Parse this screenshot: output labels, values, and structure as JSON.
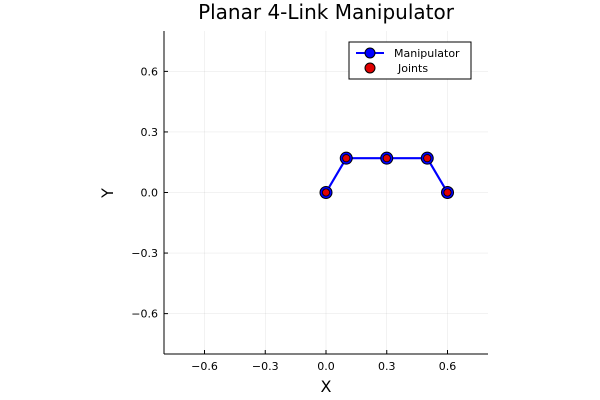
{
  "chart_data": {
    "type": "line",
    "title": "Planar 4-Link Manipulator",
    "xlabel": "X",
    "ylabel": "Y",
    "xlim": [
      -0.8,
      0.8
    ],
    "ylim": [
      -0.8,
      0.8
    ],
    "xticks": [
      -0.6,
      -0.3,
      0.0,
      0.3,
      0.6
    ],
    "yticks": [
      -0.6,
      -0.3,
      0.0,
      0.3,
      0.6
    ],
    "xtick_labels": [
      "−0.6",
      "−0.3",
      "0.0",
      "0.3",
      "0.6"
    ],
    "ytick_labels": [
      "−0.6",
      "−0.3",
      "0.0",
      "0.3",
      "0.6"
    ],
    "grid": true,
    "legend_position": "top-right",
    "series": [
      {
        "name": "Manipulator",
        "kind": "line-with-markers",
        "color": "#0000ff",
        "marker_color": "#0000ff",
        "x": [
          0.0,
          0.1,
          0.3,
          0.5,
          0.6
        ],
        "y": [
          0.0,
          0.17,
          0.17,
          0.17,
          0.0
        ]
      },
      {
        "name": "Joints",
        "kind": "scatter",
        "color": "#e00000",
        "x": [
          0.0,
          0.1,
          0.3,
          0.5,
          0.6
        ],
        "y": [
          0.0,
          0.17,
          0.17,
          0.17,
          0.0
        ]
      }
    ]
  }
}
